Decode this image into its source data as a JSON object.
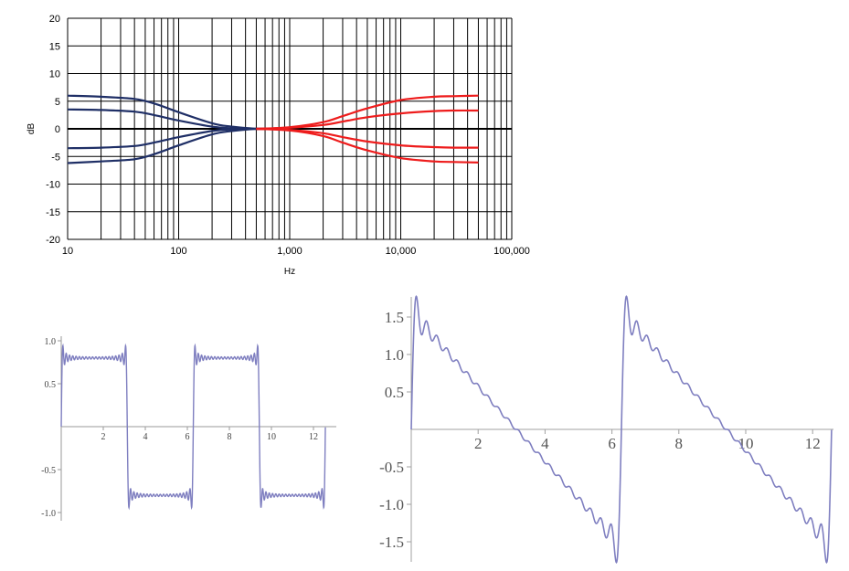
{
  "chart_data": [
    {
      "type": "line",
      "xscale": "log",
      "xlim": [
        10,
        100000
      ],
      "ylim": [
        -20,
        20
      ],
      "xlabel": "Hz",
      "ylabel": "dB",
      "grid": true,
      "legend": "none",
      "xticks": [
        "10",
        "100",
        "1,000",
        "10,000",
        "100,000"
      ],
      "yticks": [
        "20",
        "15",
        "10",
        "5",
        "0",
        "-5",
        "-10",
        "-15",
        "-20"
      ],
      "colors": {
        "low_shelf": "#1f2f66",
        "high_shelf": "#ee1c1c",
        "zero": "#000000"
      },
      "series": [
        {
          "group": "low_shelf",
          "x": [
            10,
            20,
            40,
            60,
            100,
            200,
            300,
            500,
            600
          ],
          "y": [
            6.0,
            5.8,
            5.4,
            4.6,
            3.0,
            1.0,
            0.4,
            0.0,
            0.0
          ]
        },
        {
          "group": "low_shelf",
          "x": [
            10,
            20,
            40,
            60,
            100,
            200,
            300,
            500,
            600
          ],
          "y": [
            3.5,
            3.4,
            3.1,
            2.5,
            1.5,
            0.4,
            0.1,
            0.0,
            0.0
          ]
        },
        {
          "group": "low_shelf",
          "x": [
            10,
            20,
            40,
            60,
            100,
            200,
            300,
            500,
            600
          ],
          "y": [
            -3.5,
            -3.4,
            -3.1,
            -2.5,
            -1.5,
            -0.4,
            -0.1,
            0.0,
            0.0
          ]
        },
        {
          "group": "low_shelf",
          "x": [
            10,
            20,
            40,
            60,
            100,
            200,
            300,
            500,
            600
          ],
          "y": [
            -6.2,
            -5.9,
            -5.5,
            -4.6,
            -3.0,
            -1.0,
            -0.4,
            0.0,
            0.0
          ]
        },
        {
          "group": "high_shelf",
          "x": [
            500,
            1000,
            2000,
            3000,
            5000,
            10000,
            20000,
            30000,
            50000
          ],
          "y": [
            0.0,
            0.3,
            1.2,
            2.3,
            3.7,
            5.2,
            5.8,
            5.9,
            6.0
          ]
        },
        {
          "group": "high_shelf",
          "x": [
            500,
            1000,
            2000,
            3000,
            5000,
            10000,
            20000,
            30000,
            50000
          ],
          "y": [
            0.0,
            0.2,
            0.7,
            1.3,
            2.1,
            2.8,
            3.2,
            3.3,
            3.3
          ]
        },
        {
          "group": "high_shelf",
          "x": [
            500,
            1000,
            2000,
            3000,
            5000,
            10000,
            20000,
            30000,
            50000
          ],
          "y": [
            0.0,
            -0.2,
            -0.8,
            -1.5,
            -2.3,
            -3.0,
            -3.3,
            -3.4,
            -3.4
          ]
        },
        {
          "group": "high_shelf",
          "x": [
            500,
            1000,
            2000,
            3000,
            5000,
            10000,
            20000,
            30000,
            50000
          ],
          "y": [
            0.0,
            -0.3,
            -1.3,
            -2.5,
            -3.9,
            -5.3,
            -5.9,
            -6.0,
            -6.1
          ]
        }
      ]
    },
    {
      "type": "line",
      "xlim": [
        0,
        12.6
      ],
      "ylim": [
        -1.0,
        1.0
      ],
      "xlabel": "",
      "ylabel": "",
      "grid": false,
      "xticks": [
        "2",
        "4",
        "6",
        "8",
        "10",
        "12"
      ],
      "yticks": [
        "1.0",
        "0.5",
        "-0.5",
        "-1.0"
      ],
      "colors": {
        "curve": "#7f7fc0"
      },
      "series": [
        {
          "function": "square wave Fourier partial sum",
          "harmonics": [
            1,
            3,
            5,
            7,
            9,
            11,
            13,
            15,
            17,
            19,
            21,
            23,
            25,
            27,
            29,
            31,
            33,
            35,
            37,
            39
          ],
          "x_range": [
            0,
            12.566
          ],
          "peak": 0.92,
          "plateau": 0.8
        }
      ]
    },
    {
      "type": "line",
      "xlim": [
        0,
        12.6
      ],
      "ylim": [
        -1.6,
        1.6
      ],
      "xlabel": "",
      "ylabel": "",
      "grid": false,
      "xticks": [
        "2",
        "4",
        "6",
        "8",
        "10",
        "12"
      ],
      "yticks": [
        "1.5",
        "1.0",
        "0.5",
        "-0.5",
        "-1.0",
        "-1.5"
      ],
      "colors": {
        "curve": "#7f7fc0"
      },
      "series": [
        {
          "function": "sawtooth wave Fourier partial sum",
          "harmonics": 20,
          "x_range": [
            0,
            12.566
          ],
          "peak": 1.58
        }
      ]
    }
  ]
}
